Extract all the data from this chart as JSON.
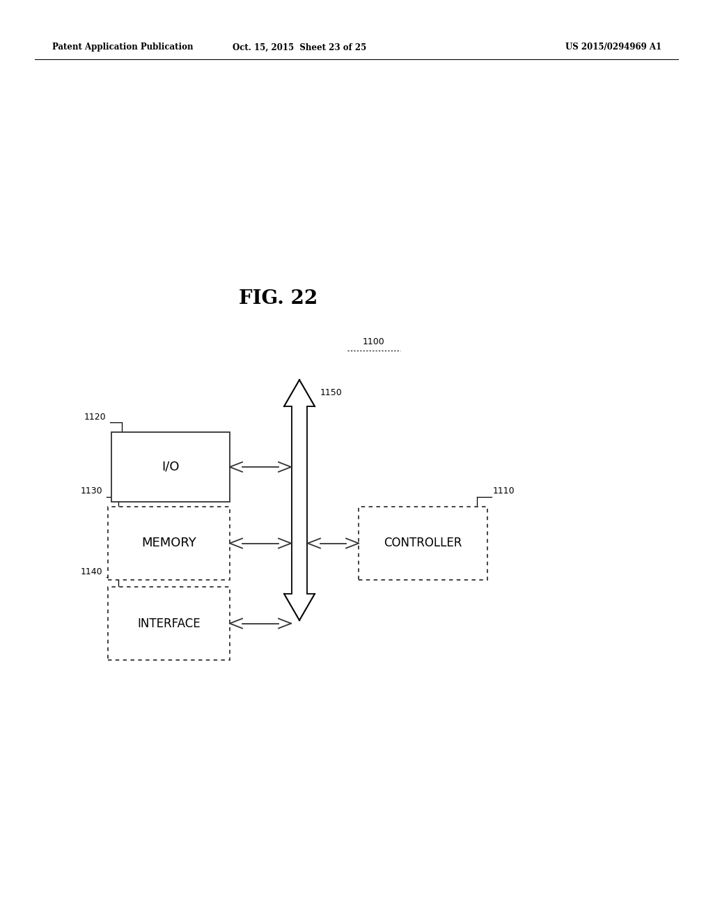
{
  "bg_color": "#ffffff",
  "header_left": "Patent Application Publication",
  "header_mid": "Oct. 15, 2015  Sheet 23 of 25",
  "header_right": "US 2015/0294969 A1",
  "fig_title": "FIG. 22",
  "label_1100": "1100",
  "label_1150": "1150",
  "label_1120": "1120",
  "label_1130": "1130",
  "label_1140": "1140",
  "label_1110": "1110",
  "box_io_label": "I/O",
  "box_memory_label": "MEMORY",
  "box_interface_label": "INTERFACE",
  "box_controller_label": "CONTROLLER",
  "text_color": "#000000",
  "line_color": "#000000"
}
